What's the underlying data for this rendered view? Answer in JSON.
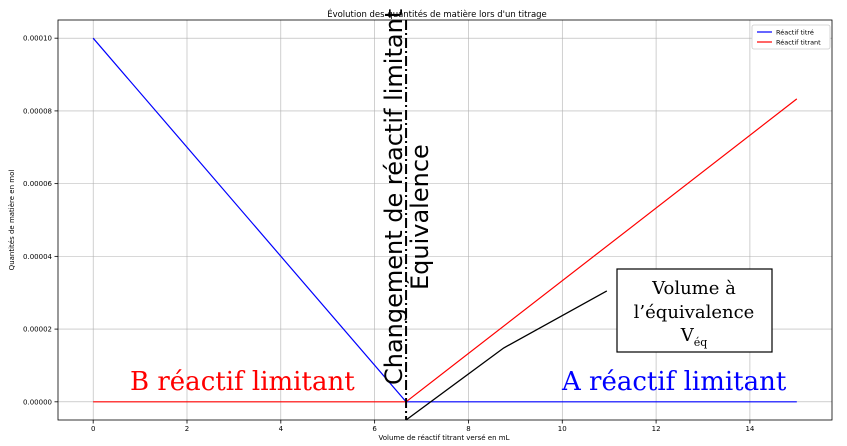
{
  "chart_data": {
    "type": "line",
    "title": "Évolution des quantités de matière lors d'un titrage",
    "xlabel": "Volume de réactif titrant versé en mL",
    "ylabel": "Quantités de matière en mol",
    "xlim": [
      -0.75,
      15.75
    ],
    "ylim": [
      -5e-06,
      0.000105
    ],
    "x_ticks": [
      0,
      2,
      4,
      6,
      8,
      10,
      12,
      14
    ],
    "x_tick_labels": [
      "0",
      "2",
      "4",
      "6",
      "8",
      "10",
      "12",
      "14"
    ],
    "y_ticks": [
      0,
      2e-05,
      4e-05,
      6e-05,
      8e-05,
      0.0001
    ],
    "y_tick_labels": [
      "0.00000",
      "0.00002",
      "0.00004",
      "0.00006",
      "0.00008",
      "0.00010"
    ],
    "grid": true,
    "legend_position": "top-right",
    "series": [
      {
        "name": "Réactif titré",
        "color": "#0000ff",
        "x": [
          0,
          6.67,
          15
        ],
        "y": [
          0.0001,
          0,
          0
        ]
      },
      {
        "name": "Réactif titrant",
        "color": "#ff0000",
        "x": [
          0,
          6.67,
          15
        ],
        "y": [
          0,
          0,
          8.33e-05
        ]
      }
    ],
    "vline": {
      "x": 6.67,
      "color": "#000000"
    },
    "annotations": {
      "vertical_left": "Changement de réactif limitant",
      "vertical_right": "Équivalence",
      "left_region": "B réactif limitant",
      "right_region": "A réactif limitant",
      "box_line1": "Volume à",
      "box_line2": "l’équivalence",
      "box_line3_main": "V",
      "box_line3_sub": "éq"
    },
    "arrow_points": [
      [
        6.67,
        -5e-06
      ],
      [
        8.75,
        1.48e-05
      ],
      [
        10.95,
        3.05e-05
      ]
    ]
  }
}
